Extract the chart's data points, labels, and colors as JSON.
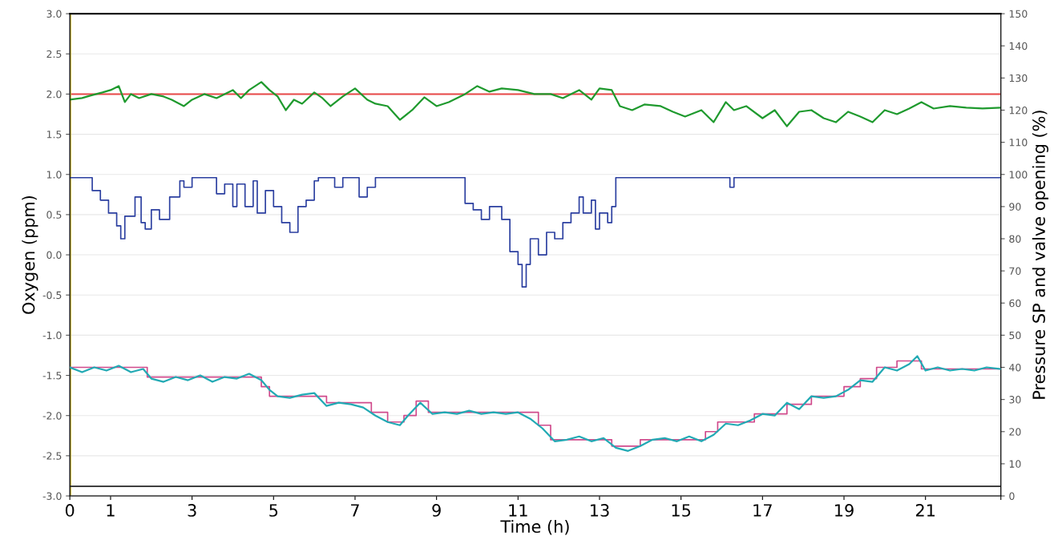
{
  "chart_data": {
    "type": "line",
    "xlabel": "Time (h)",
    "ylabel": "Oxygen (ppm)",
    "y2label": "Pressure SP and valve opening (%)",
    "xlim": [
      0,
      22.85
    ],
    "xticks": [
      0,
      1,
      3,
      5,
      7,
      9,
      11,
      13,
      15,
      17,
      19,
      21,
      {
        "value": 22.85,
        "label": null
      }
    ],
    "ylim": [
      -3,
      3
    ],
    "yticks": [
      {
        "value": -3,
        "label": "-3.0"
      },
      {
        "value": -2.5,
        "label": "-2.5"
      },
      {
        "value": -2,
        "label": "-2.0"
      },
      {
        "value": -1.5,
        "label": "-1.5"
      },
      {
        "value": -1,
        "label": "-1.0"
      },
      {
        "value": -0.5,
        "label": "-0.5"
      },
      {
        "value": 0,
        "label": "0.0"
      },
      {
        "value": 0.5,
        "label": "0.5"
      },
      {
        "value": 1,
        "label": "1.0"
      },
      {
        "value": 1.5,
        "label": "1.5"
      },
      {
        "value": 2,
        "label": "2.0"
      },
      {
        "value": 2.5,
        "label": "2.5"
      },
      {
        "value": 3,
        "label": "3.0"
      }
    ],
    "y2lim": [
      0,
      150
    ],
    "y2ticks": [
      0,
      10,
      20,
      30,
      40,
      50,
      60,
      70,
      80,
      90,
      100,
      110,
      120,
      130,
      140,
      150
    ],
    "grid": "y",
    "ref_lines": [
      {
        "axis": "y",
        "value": 2,
        "color": "#e84848"
      },
      {
        "axis": "y2",
        "value": 3,
        "color": "#404040"
      },
      {
        "axis": "x",
        "value": 0,
        "color": "#c8b428"
      }
    ],
    "series": [
      {
        "color": "#1f9a2e",
        "x": [
          0,
          0.3,
          0.5,
          0.8,
          1.0,
          1.2,
          1.35,
          1.5,
          1.7,
          2.0,
          2.3,
          2.5,
          2.8,
          3.0,
          3.3,
          3.6,
          4.0,
          4.2,
          4.4,
          4.7,
          4.9,
          5.1,
          5.3,
          5.5,
          5.7,
          6.0,
          6.2,
          6.4,
          6.7,
          7.0,
          7.3,
          7.5,
          7.8,
          8.1,
          8.4,
          8.7,
          9.0,
          9.3,
          9.7,
          10.0,
          10.3,
          10.6,
          11.0,
          11.4,
          11.8,
          12.1,
          12.5,
          12.8,
          13.0,
          13.3,
          13.5,
          13.8,
          14.1,
          14.5,
          14.8,
          15.1,
          15.5,
          15.8,
          16.1,
          16.3,
          16.6,
          17.0,
          17.3,
          17.6,
          17.9,
          18.2,
          18.5,
          18.8,
          19.1,
          19.4,
          19.7,
          20.0,
          20.3,
          20.6,
          20.9,
          21.2,
          21.6,
          22.0,
          22.4,
          22.85
        ],
        "values": [
          1.93,
          1.95,
          1.98,
          2.02,
          2.05,
          2.1,
          1.9,
          2.0,
          1.95,
          2.0,
          1.97,
          1.93,
          1.85,
          1.93,
          2.0,
          1.95,
          2.05,
          1.95,
          2.05,
          2.15,
          2.05,
          1.97,
          1.8,
          1.93,
          1.88,
          2.02,
          1.95,
          1.85,
          1.97,
          2.07,
          1.93,
          1.88,
          1.85,
          1.68,
          1.8,
          1.96,
          1.85,
          1.9,
          2.0,
          2.1,
          2.03,
          2.07,
          2.05,
          2.0,
          2.0,
          1.95,
          2.05,
          1.93,
          2.07,
          2.05,
          1.85,
          1.8,
          1.87,
          1.85,
          1.78,
          1.72,
          1.8,
          1.65,
          1.9,
          1.8,
          1.85,
          1.7,
          1.8,
          1.6,
          1.78,
          1.8,
          1.7,
          1.65,
          1.78,
          1.72,
          1.65,
          1.8,
          1.75,
          1.82,
          1.9,
          1.82,
          1.85,
          1.83,
          1.82,
          1.83
        ]
      },
      {
        "type": "step",
        "axis": "y2",
        "color": "#2b3fa0",
        "x": [
          0,
          0.55,
          0.75,
          0.95,
          1.15,
          1.25,
          1.35,
          1.6,
          1.75,
          1.85,
          2.0,
          2.2,
          2.45,
          2.7,
          2.8,
          3.0,
          3.6,
          3.8,
          4.0,
          4.1,
          4.3,
          4.5,
          4.6,
          4.8,
          5.0,
          5.2,
          5.4,
          5.6,
          5.8,
          6.0,
          6.1,
          6.5,
          6.7,
          7.1,
          7.3,
          7.5,
          9.7,
          9.9,
          10.1,
          10.3,
          10.6,
          10.8,
          11.0,
          11.1,
          11.2,
          11.3,
          11.5,
          11.7,
          11.9,
          12.1,
          12.3,
          12.5,
          12.6,
          12.8,
          12.9,
          13.0,
          13.2,
          13.3,
          13.4,
          16.2,
          16.3,
          22.85
        ],
        "values": [
          99,
          95,
          92,
          88,
          84,
          80,
          87,
          93,
          85,
          83,
          89,
          86,
          93,
          98,
          96,
          99,
          94,
          97,
          90,
          97,
          90,
          98,
          88,
          95,
          90,
          85,
          82,
          90,
          92,
          98,
          99,
          96,
          99,
          93,
          96,
          99,
          91,
          89,
          86,
          90,
          86,
          76,
          72,
          65,
          72,
          80,
          75,
          82,
          80,
          85,
          88,
          93,
          88,
          92,
          83,
          88,
          85,
          90,
          99,
          96,
          99,
          99
        ]
      },
      {
        "type": "step",
        "axis": "y2",
        "color": "#d04a8c",
        "x": [
          0,
          1.9,
          4.7,
          4.9,
          6.3,
          7.4,
          7.8,
          8.2,
          8.5,
          8.8,
          11.5,
          11.8,
          13.3,
          14.0,
          15.6,
          15.9,
          16.8,
          17.6,
          18.2,
          19.0,
          19.4,
          19.8,
          20.3,
          20.9,
          22.85
        ],
        "values": [
          40,
          37,
          34,
          31,
          29,
          26,
          23,
          25,
          29.5,
          26,
          22,
          17.5,
          15.5,
          17.5,
          20,
          23,
          25.5,
          28.5,
          31,
          34,
          36.5,
          40,
          42,
          39.5,
          39.5
        ]
      },
      {
        "axis": "y2",
        "color": "#22aab4",
        "x": [
          0,
          0.3,
          0.6,
          0.9,
          1.2,
          1.5,
          1.8,
          2.0,
          2.3,
          2.6,
          2.9,
          3.2,
          3.5,
          3.8,
          4.1,
          4.4,
          4.7,
          4.9,
          5.1,
          5.4,
          5.7,
          6.0,
          6.3,
          6.6,
          6.9,
          7.2,
          7.5,
          7.8,
          8.1,
          8.3,
          8.6,
          8.9,
          9.2,
          9.5,
          9.8,
          10.1,
          10.4,
          10.7,
          11.0,
          11.3,
          11.6,
          11.9,
          12.2,
          12.5,
          12.8,
          13.1,
          13.4,
          13.7,
          14.0,
          14.3,
          14.6,
          14.9,
          15.2,
          15.5,
          15.8,
          16.1,
          16.4,
          16.7,
          17.0,
          17.3,
          17.6,
          17.9,
          18.2,
          18.5,
          18.8,
          19.1,
          19.4,
          19.7,
          20.0,
          20.3,
          20.6,
          20.8,
          21.0,
          21.3,
          21.6,
          21.9,
          22.2,
          22.5,
          22.85
        ],
        "values": [
          40,
          38.5,
          40,
          39,
          40.5,
          38.5,
          39.5,
          36.5,
          35.5,
          37,
          36,
          37.5,
          35.5,
          37,
          36.5,
          38,
          36,
          33,
          31,
          30.5,
          31.5,
          32,
          28,
          29,
          28.5,
          27.5,
          25,
          23,
          22,
          25,
          29,
          25.5,
          26,
          25.5,
          26.5,
          25.5,
          26,
          25.5,
          26,
          24,
          21,
          17,
          17.5,
          18.5,
          17,
          18,
          15,
          14,
          15.5,
          17.5,
          18,
          17,
          18.5,
          17,
          19,
          22.5,
          22,
          23.5,
          25.5,
          25,
          29,
          27,
          31,
          30.5,
          31,
          33,
          36,
          35.5,
          40,
          39,
          41,
          43.5,
          39,
          40,
          39,
          39.5,
          39,
          40,
          39.5
        ]
      }
    ]
  }
}
